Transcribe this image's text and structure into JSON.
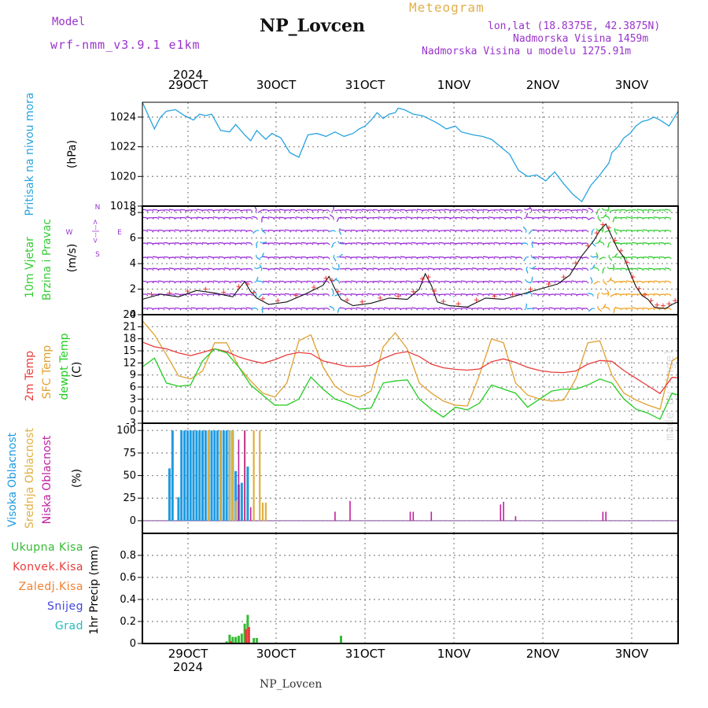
{
  "header": {
    "model_label": "Model",
    "model": "wrf-nmm_v3.9.1 e1km",
    "title": "NP_Lovcen",
    "meteogram": "Meteogram",
    "lonlat": "lon,lat (18.8375E, 42.3875N)",
    "altitude": "Nadmorska Visina 1459m",
    "altitude_model": "Nadmorska Visina u modelu 1275.91m"
  },
  "footer": {
    "station": "NP_Lovcen",
    "watermark": "made by Angel"
  },
  "colors": {
    "pressure": "#27a3e0",
    "wind_high": "#9b30d9",
    "wind_mid": "#2aa6e8",
    "wind_low": "#33cc33",
    "wind_strong": "#f0a020",
    "temp2m": "#e83c3c",
    "sfc": "#e0a030",
    "dewpt": "#22cc22",
    "cloud_high": "#1e9be0",
    "cloud_mid": "#e0b040",
    "cloud_low": "#c020a0",
    "rain_total": "#33bb33",
    "rain_conv": "#e83c3c",
    "rain_frozen": "#f08030",
    "snow": "#4444dd",
    "grad": "#22bbbb"
  },
  "chart_data": [
    {
      "type": "line",
      "title": "",
      "ylabel": [
        "Pritisak na nivou mora",
        "(hPa)"
      ],
      "ylim": [
        1018,
        1025
      ],
      "yticks": [
        "1018",
        "1020",
        "1022",
        "1024"
      ],
      "top_year": "2024",
      "date_labels": [
        "29OCT",
        "30OCT",
        "31OCT",
        "1NOV",
        "2NOV",
        "3NOV"
      ],
      "x_hours": [
        0,
        4,
        6,
        8,
        11,
        14,
        17,
        19,
        21,
        23,
        26,
        29,
        31,
        34,
        36,
        38,
        40,
        41,
        43,
        46,
        49,
        52,
        55,
        58,
        61,
        64,
        67,
        70,
        72,
        74,
        76,
        78,
        80,
        82,
        84,
        85,
        87,
        90,
        93,
        95,
        98,
        101,
        104,
        106,
        108,
        110,
        113,
        116,
        119,
        122,
        125,
        128,
        131,
        134,
        137,
        140,
        143,
        146,
        149,
        152,
        155,
        156,
        158,
        160,
        162,
        164,
        166,
        168,
        170,
        172,
        175,
        178
      ],
      "series": [
        {
          "values": [
            1025.0,
            1023.2,
            1024.0,
            1024.4,
            1024.5,
            1024.1,
            1023.8,
            1024.2,
            1024.1,
            1024.2,
            1023.1,
            1023.0,
            1023.5,
            1022.8,
            1022.4,
            1023.1,
            1022.7,
            1022.5,
            1022.9,
            1022.6,
            1021.6,
            1021.3,
            1022.8,
            1022.9,
            1022.7,
            1023.0,
            1022.7,
            1022.9,
            1023.2,
            1023.4,
            1023.8,
            1024.3,
            1023.9,
            1024.2,
            1024.3,
            1024.6,
            1024.5,
            1024.2,
            1024.1,
            1023.9,
            1023.6,
            1023.2,
            1023.4,
            1023.0,
            1022.9,
            1022.8,
            1022.7,
            1022.5,
            1022.0,
            1021.5,
            1020.4,
            1020.0,
            1020.1,
            1019.7,
            1020.3,
            1019.5,
            1018.8,
            1018.3,
            1019.4,
            1020.1,
            1020.9,
            1021.6,
            1022.0,
            1022.6,
            1022.9,
            1023.4,
            1023.7,
            1023.8,
            1024.0,
            1023.8,
            1023.4,
            1024.4
          ]
        }
      ]
    },
    {
      "type": "line",
      "title": "",
      "ylabel": [
        "10m Vjetar",
        "Brzina i Pravac",
        "(m/s)"
      ],
      "legend": [
        "N",
        "W",
        "<--|-->",
        "E",
        "S"
      ],
      "ylim": [
        0,
        8.5
      ],
      "yticks": [
        "0",
        "2",
        "4",
        "6",
        "8"
      ],
      "x_hours": [
        0,
        6,
        12,
        18,
        24,
        30,
        34,
        36,
        38,
        42,
        48,
        54,
        60,
        62,
        64,
        66,
        70,
        76,
        82,
        88,
        92,
        94,
        96,
        98,
        102,
        108,
        114,
        120,
        126,
        132,
        138,
        142,
        146,
        150,
        152,
        154,
        156,
        158,
        160,
        162,
        164,
        166,
        168,
        170,
        172,
        174,
        176,
        178
      ],
      "series": [
        {
          "name": "speed",
          "values": [
            1.2,
            1.6,
            1.4,
            1.9,
            1.7,
            1.4,
            2.6,
            1.8,
            1.3,
            0.8,
            1.0,
            1.6,
            2.3,
            3.0,
            2.0,
            1.2,
            0.7,
            0.9,
            1.3,
            1.2,
            2.0,
            3.2,
            2.3,
            1.0,
            0.7,
            0.6,
            1.3,
            1.2,
            1.6,
            2.0,
            2.4,
            3.1,
            4.6,
            5.8,
            6.6,
            7.1,
            6.1,
            5.1,
            4.5,
            3.3,
            2.2,
            1.5,
            1.2,
            0.6,
            0.5,
            0.5,
            0.8,
            1.0
          ]
        }
      ]
    },
    {
      "type": "line",
      "title": "",
      "ylabel": [
        "2m Temp",
        "SFC Temp",
        "dewpt Temp",
        "(C)"
      ],
      "ylim": [
        -3,
        24
      ],
      "yticks": [
        "-3",
        "0",
        "3",
        "6",
        "9",
        "12",
        "15",
        "18",
        "21",
        "24"
      ],
      "x_hours": [
        0,
        4,
        8,
        12,
        16,
        20,
        24,
        28,
        32,
        36,
        40,
        44,
        48,
        52,
        56,
        60,
        64,
        68,
        72,
        76,
        80,
        84,
        88,
        92,
        96,
        100,
        104,
        108,
        112,
        116,
        120,
        124,
        128,
        132,
        136,
        140,
        144,
        148,
        152,
        156,
        160,
        164,
        168,
        172,
        176,
        178
      ],
      "series": [
        {
          "name": "2m Temp",
          "values": [
            17.2,
            16.0,
            15.5,
            14.5,
            13.8,
            14.6,
            15.5,
            14.8,
            13.5,
            12.6,
            11.9,
            12.8,
            14.0,
            14.6,
            14.3,
            12.5,
            11.8,
            11.1,
            11.1,
            11.4,
            13.1,
            14.3,
            14.8,
            13.6,
            11.7,
            10.8,
            10.4,
            10.2,
            10.5,
            12.3,
            13.0,
            12.1,
            10.9,
            10.1,
            9.7,
            9.6,
            10.0,
            11.7,
            12.6,
            12.4,
            10.1,
            8.2,
            6.3,
            4.4,
            8.4,
            8.3
          ]
        },
        {
          "name": "SFC Temp",
          "values": [
            22.5,
            19.0,
            14.0,
            8.8,
            8.0,
            10.0,
            17.0,
            17.0,
            11.0,
            7.5,
            4.5,
            3.5,
            7.0,
            17.5,
            19.0,
            11.0,
            6.2,
            4.2,
            3.5,
            5.0,
            16.0,
            19.5,
            15.5,
            7.0,
            4.5,
            2.5,
            1.5,
            1.3,
            9.0,
            18.0,
            17.0,
            7.0,
            4.0,
            3.0,
            2.5,
            2.8,
            8.0,
            17.0,
            17.5,
            9.0,
            4.5,
            2.8,
            1.5,
            0.5,
            12.5,
            13.5
          ]
        },
        {
          "name": "dewpt Temp",
          "values": [
            11.0,
            13.2,
            7.0,
            6.2,
            6.5,
            12.5,
            15.5,
            14.5,
            11.0,
            6.5,
            4.0,
            1.5,
            1.5,
            3.0,
            8.5,
            5.5,
            3.0,
            2.0,
            0.5,
            0.8,
            7.0,
            7.5,
            7.8,
            3.0,
            0.5,
            -1.5,
            1.0,
            0.3,
            2.0,
            6.5,
            5.5,
            4.5,
            1.0,
            3.0,
            5.0,
            5.5,
            5.5,
            6.5,
            8.0,
            7.0,
            3.0,
            0.5,
            -0.5,
            -2.0,
            4.5,
            4.0
          ]
        }
      ]
    },
    {
      "type": "bar",
      "title": "",
      "ylabel": [
        "Visoka Oblacnost",
        "Srednja Oblacnost",
        "Niska Oblacnost",
        "(%)"
      ],
      "ylim": [
        0,
        100
      ],
      "yticks": [
        "0",
        "25",
        "50",
        "75",
        "100"
      ],
      "series": [
        {
          "name": "Visoka Oblacnost",
          "x": [
            9,
            10,
            12,
            13,
            14,
            15,
            16,
            17,
            18,
            19,
            20,
            21,
            22,
            23,
            24,
            25,
            26,
            27,
            28,
            29,
            30,
            31,
            32,
            33,
            35
          ],
          "values": [
            58,
            100,
            26,
            100,
            100,
            100,
            100,
            100,
            100,
            100,
            100,
            100,
            100,
            100,
            100,
            100,
            100,
            100,
            100,
            100,
            100,
            55,
            40,
            42,
            60
          ]
        },
        {
          "name": "Srednja Oblacnost",
          "x": [
            22,
            26,
            29,
            30,
            31,
            34,
            37,
            39,
            40,
            41
          ],
          "values": [
            100,
            100,
            100,
            100,
            22,
            100,
            100,
            100,
            20,
            20
          ]
        },
        {
          "name": "Niska Oblacnost",
          "x": [
            32,
            34,
            36,
            64,
            69,
            89,
            90,
            96,
            119,
            120,
            124,
            153,
            154
          ],
          "values": [
            90,
            100,
            15,
            10,
            22,
            10,
            10,
            10,
            18,
            21,
            5,
            10,
            10
          ]
        }
      ]
    },
    {
      "type": "bar",
      "title": "",
      "ylabel": [
        "Ukupna Kisa",
        "Konvek.Kisa",
        "Zaledj.Kisa",
        "Snijeg",
        "Grad",
        "1hr Precip (mm)"
      ],
      "ylim": [
        0,
        1.0
      ],
      "yticks": [
        "0",
        "0.2",
        "0.4",
        "0.6",
        "0.8"
      ],
      "bottom_year": "2024",
      "series": [
        {
          "name": "Ukupna Kisa",
          "x": [
            28,
            29,
            30,
            31,
            32,
            33,
            34,
            35,
            37,
            38,
            66
          ],
          "values": [
            0.02,
            0.08,
            0.06,
            0.06,
            0.07,
            0.09,
            0.18,
            0.26,
            0.05,
            0.05,
            0.07
          ]
        },
        {
          "name": "Konvek.Kisa",
          "x": [
            29,
            34,
            35
          ],
          "values": [
            0.02,
            0.13,
            0.15
          ]
        }
      ]
    }
  ]
}
